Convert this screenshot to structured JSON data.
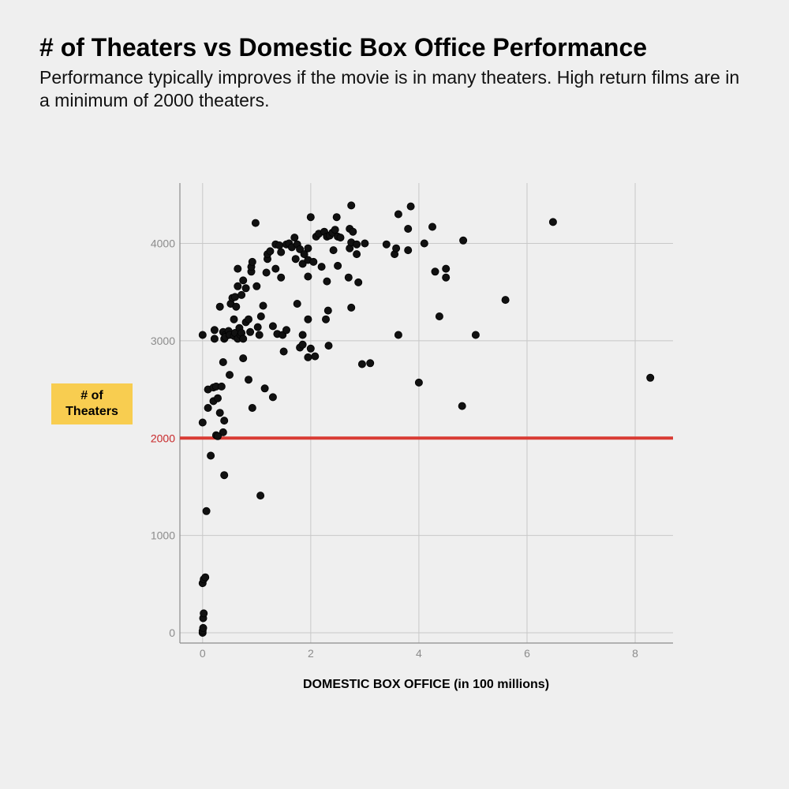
{
  "header": {
    "title": "# of Theaters vs Domestic Box Office Performance",
    "subtitle": "Performance typically improves if the movie is in many theaters.  High return films are in a minimum of 2000 theaters."
  },
  "chart_data": {
    "type": "scatter",
    "xlabel": "DOMESTIC BOX OFFICE (in 100 millions)",
    "ylabel": "# of\nTheaters",
    "xlim": [
      -0.42,
      8.7
    ],
    "ylim": [
      -105,
      4620
    ],
    "xticks": [
      "0",
      "2",
      "4",
      "6",
      "8"
    ],
    "yticks": [
      "0",
      "1000",
      "2000",
      "3000",
      "4000"
    ],
    "grid": true,
    "reference_line": {
      "y": 2000,
      "label": "2000",
      "color": "#d93b34"
    },
    "point_color": "#111111",
    "points": [
      [
        0.0,
        0
      ],
      [
        0.0,
        20
      ],
      [
        0.01,
        50
      ],
      [
        0.01,
        150
      ],
      [
        0.02,
        200
      ],
      [
        0.0,
        510
      ],
      [
        0.02,
        550
      ],
      [
        0.05,
        570
      ],
      [
        0.07,
        1250
      ],
      [
        0.15,
        1820
      ],
      [
        0.4,
        1620
      ],
      [
        1.07,
        1410
      ],
      [
        0.0,
        2160
      ],
      [
        0.0,
        3060
      ],
      [
        0.1,
        2310
      ],
      [
        0.1,
        2500
      ],
      [
        0.2,
        2520
      ],
      [
        0.25,
        2530
      ],
      [
        0.2,
        2380
      ],
      [
        0.28,
        2410
      ],
      [
        0.35,
        2530
      ],
      [
        0.32,
        2260
      ],
      [
        0.4,
        2180
      ],
      [
        0.38,
        2060
      ],
      [
        0.25,
        2030
      ],
      [
        0.28,
        2020
      ],
      [
        0.5,
        2650
      ],
      [
        0.38,
        2780
      ],
      [
        0.22,
        3110
      ],
      [
        0.22,
        3020
      ],
      [
        0.32,
        3350
      ],
      [
        0.38,
        3090
      ],
      [
        0.4,
        3020
      ],
      [
        0.42,
        3060
      ],
      [
        0.42,
        3040
      ],
      [
        0.48,
        3100
      ],
      [
        0.5,
        3060
      ],
      [
        0.52,
        3380
      ],
      [
        0.55,
        3440
      ],
      [
        0.58,
        3050
      ],
      [
        0.58,
        3220
      ],
      [
        0.6,
        3450
      ],
      [
        0.6,
        3080
      ],
      [
        0.62,
        3350
      ],
      [
        0.65,
        3560
      ],
      [
        0.65,
        3740
      ],
      [
        0.65,
        3020
      ],
      [
        0.68,
        3130
      ],
      [
        0.7,
        3060
      ],
      [
        0.72,
        3470
      ],
      [
        0.72,
        3080
      ],
      [
        0.75,
        3620
      ],
      [
        0.75,
        3020
      ],
      [
        0.75,
        2820
      ],
      [
        0.8,
        3190
      ],
      [
        0.8,
        3540
      ],
      [
        0.85,
        2600
      ],
      [
        0.85,
        3220
      ],
      [
        0.88,
        3090
      ],
      [
        0.9,
        3710
      ],
      [
        0.9,
        3760
      ],
      [
        0.92,
        2310
      ],
      [
        0.92,
        3810
      ],
      [
        0.98,
        4210
      ],
      [
        1.0,
        3560
      ],
      [
        1.02,
        3140
      ],
      [
        1.05,
        3060
      ],
      [
        1.08,
        3250
      ],
      [
        1.12,
        3360
      ],
      [
        1.15,
        2510
      ],
      [
        1.18,
        3700
      ],
      [
        1.2,
        3840
      ],
      [
        1.2,
        3890
      ],
      [
        1.25,
        3920
      ],
      [
        1.3,
        3150
      ],
      [
        1.3,
        2420
      ],
      [
        1.35,
        3990
      ],
      [
        1.35,
        3740
      ],
      [
        1.38,
        3070
      ],
      [
        1.42,
        3980
      ],
      [
        1.45,
        3910
      ],
      [
        1.45,
        3650
      ],
      [
        1.48,
        3060
      ],
      [
        1.5,
        2890
      ],
      [
        1.55,
        3110
      ],
      [
        1.55,
        3990
      ],
      [
        1.6,
        4000
      ],
      [
        1.65,
        3960
      ],
      [
        1.7,
        4060
      ],
      [
        1.72,
        3840
      ],
      [
        1.75,
        3380
      ],
      [
        1.75,
        3990
      ],
      [
        1.8,
        3940
      ],
      [
        1.8,
        2930
      ],
      [
        1.85,
        2960
      ],
      [
        1.85,
        3790
      ],
      [
        1.85,
        3060
      ],
      [
        1.88,
        3890
      ],
      [
        1.95,
        3830
      ],
      [
        1.95,
        3660
      ],
      [
        1.95,
        3950
      ],
      [
        1.95,
        3220
      ],
      [
        1.95,
        2830
      ],
      [
        2.0,
        2920
      ],
      [
        2.0,
        4270
      ],
      [
        2.05,
        3810
      ],
      [
        2.08,
        2840
      ],
      [
        2.1,
        4070
      ],
      [
        2.15,
        4100
      ],
      [
        2.2,
        3760
      ],
      [
        2.25,
        4120
      ],
      [
        2.28,
        3220
      ],
      [
        2.3,
        4070
      ],
      [
        2.3,
        3610
      ],
      [
        2.32,
        3310
      ],
      [
        2.33,
        2950
      ],
      [
        2.35,
        4080
      ],
      [
        2.4,
        4110
      ],
      [
        2.42,
        3930
      ],
      [
        2.45,
        4140
      ],
      [
        2.48,
        4270
      ],
      [
        2.5,
        3770
      ],
      [
        2.5,
        4070
      ],
      [
        2.55,
        4060
      ],
      [
        2.7,
        3650
      ],
      [
        2.72,
        3950
      ],
      [
        2.72,
        4150
      ],
      [
        2.75,
        4390
      ],
      [
        2.75,
        4010
      ],
      [
        2.75,
        3340
      ],
      [
        2.78,
        4120
      ],
      [
        2.85,
        3990
      ],
      [
        2.85,
        3890
      ],
      [
        2.88,
        3600
      ],
      [
        2.95,
        2760
      ],
      [
        3.0,
        4000
      ],
      [
        3.1,
        2770
      ],
      [
        3.4,
        3990
      ],
      [
        3.55,
        3890
      ],
      [
        3.58,
        3950
      ],
      [
        3.62,
        4300
      ],
      [
        3.62,
        3060
      ],
      [
        3.8,
        4150
      ],
      [
        3.8,
        3930
      ],
      [
        3.85,
        4380
      ],
      [
        4.0,
        2570
      ],
      [
        4.1,
        4000
      ],
      [
        4.25,
        4170
      ],
      [
        4.3,
        3710
      ],
      [
        4.38,
        3250
      ],
      [
        4.5,
        3740
      ],
      [
        4.5,
        3650
      ],
      [
        4.8,
        2330
      ],
      [
        4.82,
        4030
      ],
      [
        5.05,
        3060
      ],
      [
        5.6,
        3420
      ],
      [
        6.48,
        4220
      ],
      [
        8.28,
        2620
      ]
    ]
  }
}
